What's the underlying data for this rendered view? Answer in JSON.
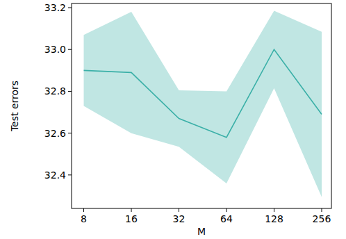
{
  "chart_data": {
    "type": "line",
    "xlabel": "M",
    "ylabel": "Test errors",
    "x": [
      8,
      16,
      32,
      64,
      128,
      256
    ],
    "values": [
      32.9,
      32.89,
      32.67,
      32.58,
      33.0,
      32.69
    ],
    "error": [
      0.17,
      0.29,
      0.135,
      0.22,
      0.185,
      0.395
    ],
    "color": "#3bb0a8",
    "log": "x",
    "xlim": [
      6.7,
      295
    ],
    "ylim": [
      32.24,
      33.22
    ],
    "xticks": [
      8,
      16,
      32,
      64,
      128,
      256
    ],
    "yticks": [
      32.4,
      32.6,
      32.8,
      {
        "value": 33.0,
        "label": "33.0"
      },
      33.2
    ]
  }
}
